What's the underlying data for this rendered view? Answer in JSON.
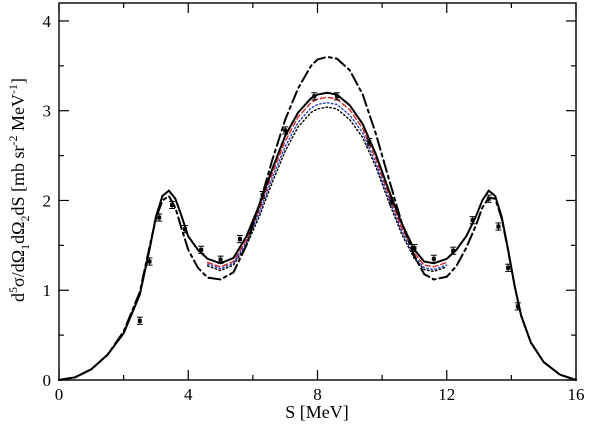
{
  "chart_data": {
    "type": "line",
    "xlabel": "S [MeV]",
    "ylabel_parts": [
      "d",
      "5",
      "σ/dΩ",
      "1",
      "dΩ",
      "2",
      "dS [mb sr",
      "-2",
      " MeV",
      "-1",
      "]"
    ],
    "xlim": [
      0,
      16
    ],
    "ylim": [
      0,
      4.2
    ],
    "xticks": [
      0,
      4,
      8,
      12,
      16
    ],
    "xtick_labels": [
      "0",
      "4",
      "8",
      "12",
      "16"
    ],
    "yticks": [
      0,
      1,
      2,
      3,
      4
    ],
    "ytick_labels": [
      "0",
      "1",
      "2",
      "3",
      "4"
    ],
    "grid": false,
    "legend": "none",
    "series": [
      {
        "style": "solid",
        "color": "#000000",
        "x": [
          0.0,
          0.5,
          1.0,
          1.5,
          2.0,
          2.5,
          2.8,
          3.0,
          3.2,
          3.4,
          3.6,
          3.8,
          4.0,
          4.3,
          4.6,
          5.0,
          5.4,
          5.8,
          6.2,
          6.6,
          7.0,
          7.4,
          7.8,
          8.0,
          8.3,
          8.6,
          9.0,
          9.4,
          9.8,
          10.2,
          10.6,
          11.0,
          11.3,
          11.6,
          12.0,
          12.3,
          12.6,
          12.9,
          13.1,
          13.3,
          13.5,
          13.7,
          13.9,
          14.1,
          14.3,
          14.6,
          15.0,
          15.5,
          16.0
        ],
        "y": [
          0.0,
          0.03,
          0.12,
          0.28,
          0.52,
          0.95,
          1.45,
          1.82,
          2.05,
          2.11,
          2.02,
          1.82,
          1.6,
          1.45,
          1.35,
          1.3,
          1.36,
          1.6,
          1.95,
          2.35,
          2.72,
          2.98,
          3.14,
          3.18,
          3.2,
          3.18,
          3.06,
          2.85,
          2.52,
          2.12,
          1.75,
          1.45,
          1.32,
          1.3,
          1.35,
          1.45,
          1.6,
          1.82,
          2.0,
          2.11,
          2.05,
          1.82,
          1.45,
          1.05,
          0.72,
          0.42,
          0.2,
          0.06,
          0.0
        ]
      },
      {
        "style": "dash-dot",
        "color": "#000000",
        "x": [
          0.0,
          0.5,
          1.0,
          1.5,
          2.0,
          2.5,
          2.8,
          3.0,
          3.2,
          3.4,
          3.6,
          3.8,
          4.0,
          4.3,
          4.6,
          5.0,
          5.4,
          5.8,
          6.2,
          6.6,
          7.0,
          7.4,
          7.8,
          8.0,
          8.3,
          8.6,
          9.0,
          9.4,
          9.8,
          10.2,
          10.6,
          11.0,
          11.3,
          11.6,
          12.0,
          12.3,
          12.6,
          12.9,
          13.1,
          13.3,
          13.5,
          13.7,
          13.9,
          14.1,
          14.3,
          14.6,
          15.0,
          15.5,
          16.0
        ],
        "y": [
          0.0,
          0.03,
          0.12,
          0.28,
          0.54,
          0.98,
          1.48,
          1.8,
          2.0,
          2.05,
          1.92,
          1.68,
          1.45,
          1.25,
          1.14,
          1.12,
          1.2,
          1.5,
          1.95,
          2.45,
          2.9,
          3.25,
          3.5,
          3.57,
          3.6,
          3.58,
          3.45,
          3.18,
          2.75,
          2.25,
          1.76,
          1.38,
          1.18,
          1.12,
          1.15,
          1.27,
          1.47,
          1.72,
          1.92,
          2.03,
          2.02,
          1.8,
          1.44,
          1.05,
          0.72,
          0.42,
          0.2,
          0.06,
          0.0
        ]
      },
      {
        "style": "dashed",
        "color": "#d62728",
        "x": [
          4.6,
          5.0,
          5.4,
          5.8,
          6.2,
          6.6,
          7.0,
          7.4,
          7.8,
          8.0,
          8.3,
          8.6,
          9.0,
          9.4,
          9.8,
          10.2,
          10.6,
          11.0,
          11.3,
          11.6,
          12.0
        ],
        "y": [
          1.31,
          1.26,
          1.32,
          1.56,
          1.9,
          2.3,
          2.66,
          2.93,
          3.09,
          3.13,
          3.15,
          3.13,
          3.01,
          2.8,
          2.47,
          2.07,
          1.7,
          1.41,
          1.28,
          1.26,
          1.31
        ]
      },
      {
        "style": "dotted",
        "color": "#1f3fbf",
        "x": [
          4.6,
          5.0,
          5.4,
          5.8,
          6.2,
          6.6,
          7.0,
          7.4,
          7.8,
          8.0,
          8.3,
          8.6,
          9.0,
          9.4,
          9.8,
          10.2,
          10.6,
          11.0,
          11.3,
          11.6,
          12.0
        ],
        "y": [
          1.29,
          1.24,
          1.3,
          1.53,
          1.86,
          2.25,
          2.6,
          2.87,
          3.03,
          3.07,
          3.09,
          3.07,
          2.95,
          2.75,
          2.42,
          2.03,
          1.66,
          1.38,
          1.25,
          1.23,
          1.28
        ]
      },
      {
        "style": "dotted",
        "color": "#000000",
        "x": [
          4.6,
          5.0,
          5.4,
          5.8,
          6.2,
          6.6,
          7.0,
          7.4,
          7.8,
          8.0,
          8.3,
          8.6,
          9.0,
          9.4,
          9.8,
          10.2,
          10.6,
          11.0,
          11.3,
          11.6,
          12.0
        ],
        "y": [
          1.27,
          1.22,
          1.28,
          1.5,
          1.82,
          2.2,
          2.55,
          2.82,
          2.98,
          3.02,
          3.04,
          3.02,
          2.9,
          2.7,
          2.38,
          1.99,
          1.63,
          1.35,
          1.23,
          1.21,
          1.26
        ]
      }
    ],
    "points": {
      "x": [
        2.5,
        2.8,
        3.1,
        3.5,
        3.9,
        4.4,
        5.0,
        5.6,
        6.3,
        7.0,
        7.9,
        8.6,
        9.6,
        10.3,
        11.0,
        11.6,
        12.2,
        12.8,
        13.3,
        13.6,
        13.9,
        14.2
      ],
      "y": [
        0.66,
        1.32,
        1.81,
        1.95,
        1.68,
        1.45,
        1.34,
        1.57,
        2.06,
        2.78,
        3.16,
        3.16,
        2.65,
        1.99,
        1.47,
        1.35,
        1.44,
        1.78,
        2.02,
        1.71,
        1.25,
        0.82
      ],
      "err": [
        0.04,
        0.04,
        0.04,
        0.04,
        0.04,
        0.04,
        0.04,
        0.04,
        0.04,
        0.04,
        0.04,
        0.04,
        0.04,
        0.04,
        0.04,
        0.04,
        0.04,
        0.04,
        0.04,
        0.04,
        0.04,
        0.04
      ]
    }
  }
}
